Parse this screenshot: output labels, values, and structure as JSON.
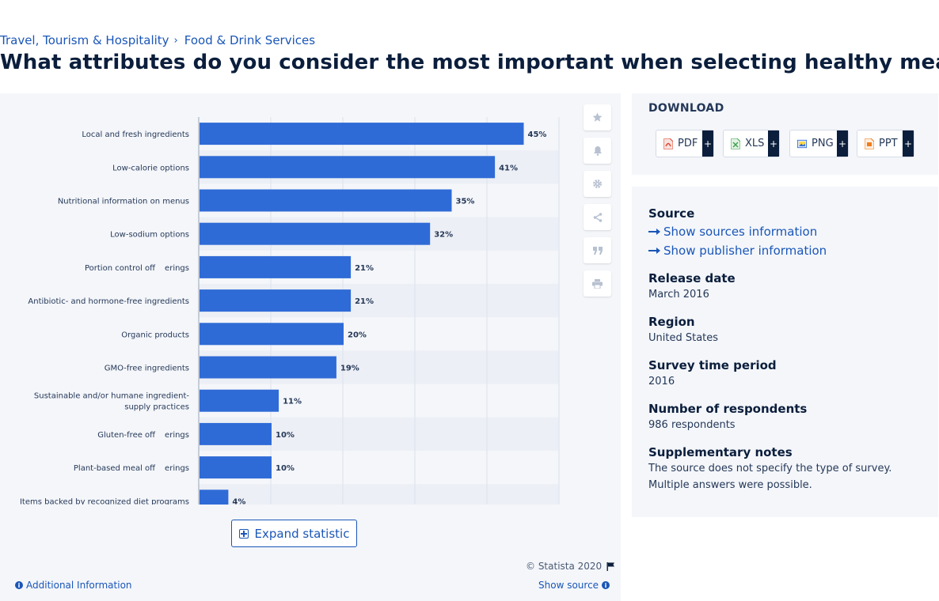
{
  "breadcrumb": {
    "item1": "Travel, Tourism & Hospitality",
    "separator": "›",
    "item2": "Food & Drink Services"
  },
  "title": "What attributes do you consider the most important when selecting healthy meals?",
  "chart_data": {
    "type": "bar",
    "orientation": "horizontal",
    "categories": [
      "Local and fresh ingredients",
      "Low-calorie options",
      "Nutritional information on menus",
      "Low-sodium options",
      "Portion control off  erings",
      "Antibiotic- and hormone-free ingredients",
      "Organic products",
      "GMO-free ingredients",
      "Sustainable and/or humane ingredient-\nsupply practices",
      "Gluten-free off  erings",
      "Plant-based meal off  erings",
      "Items backed by recognized diet programs"
    ],
    "values": [
      45,
      41,
      35,
      32,
      21,
      21,
      20,
      19,
      11,
      10,
      10,
      4
    ],
    "data_labels": [
      "45%",
      "41%",
      "35%",
      "32%",
      "21%",
      "21%",
      "20%",
      "19%",
      "11%",
      "10%",
      "10%",
      "4%"
    ],
    "unit": "%",
    "xlim": [
      0,
      50
    ],
    "grid": true,
    "bar_color": "#2f6bd6"
  },
  "expand_label": "Expand statistic",
  "copyright": "© Statista 2020",
  "additional_info": "Additional Information",
  "show_source": "Show source",
  "side_icons": [
    "star-icon",
    "bell-icon",
    "gear-icon",
    "share-icon",
    "quote-icon",
    "print-icon"
  ],
  "download": {
    "title": "DOWNLOAD",
    "buttons": [
      {
        "label": "PDF",
        "icon": "pdf-file-icon",
        "color": "#e0442b"
      },
      {
        "label": "XLS",
        "icon": "xls-file-icon",
        "color": "#3fa34d"
      },
      {
        "label": "PNG",
        "icon": "png-file-icon",
        "color": "#2f6bd6"
      },
      {
        "label": "PPT",
        "icon": "ppt-file-icon",
        "color": "#ef7d1a"
      }
    ],
    "plus": "+"
  },
  "info": {
    "source_label": "Source",
    "show_sources": "Show sources information",
    "show_publisher": "Show publisher information",
    "release_label": "Release date",
    "release_value": "March 2016",
    "region_label": "Region",
    "region_value": "United States",
    "period_label": "Survey time period",
    "period_value": "2016",
    "respondents_label": "Number of respondents",
    "respondents_value": "986 respondents",
    "notes_label": "Supplementary notes",
    "notes_line1": "The source does not specify the type of survey.",
    "notes_line2": "Multiple answers were possible."
  }
}
